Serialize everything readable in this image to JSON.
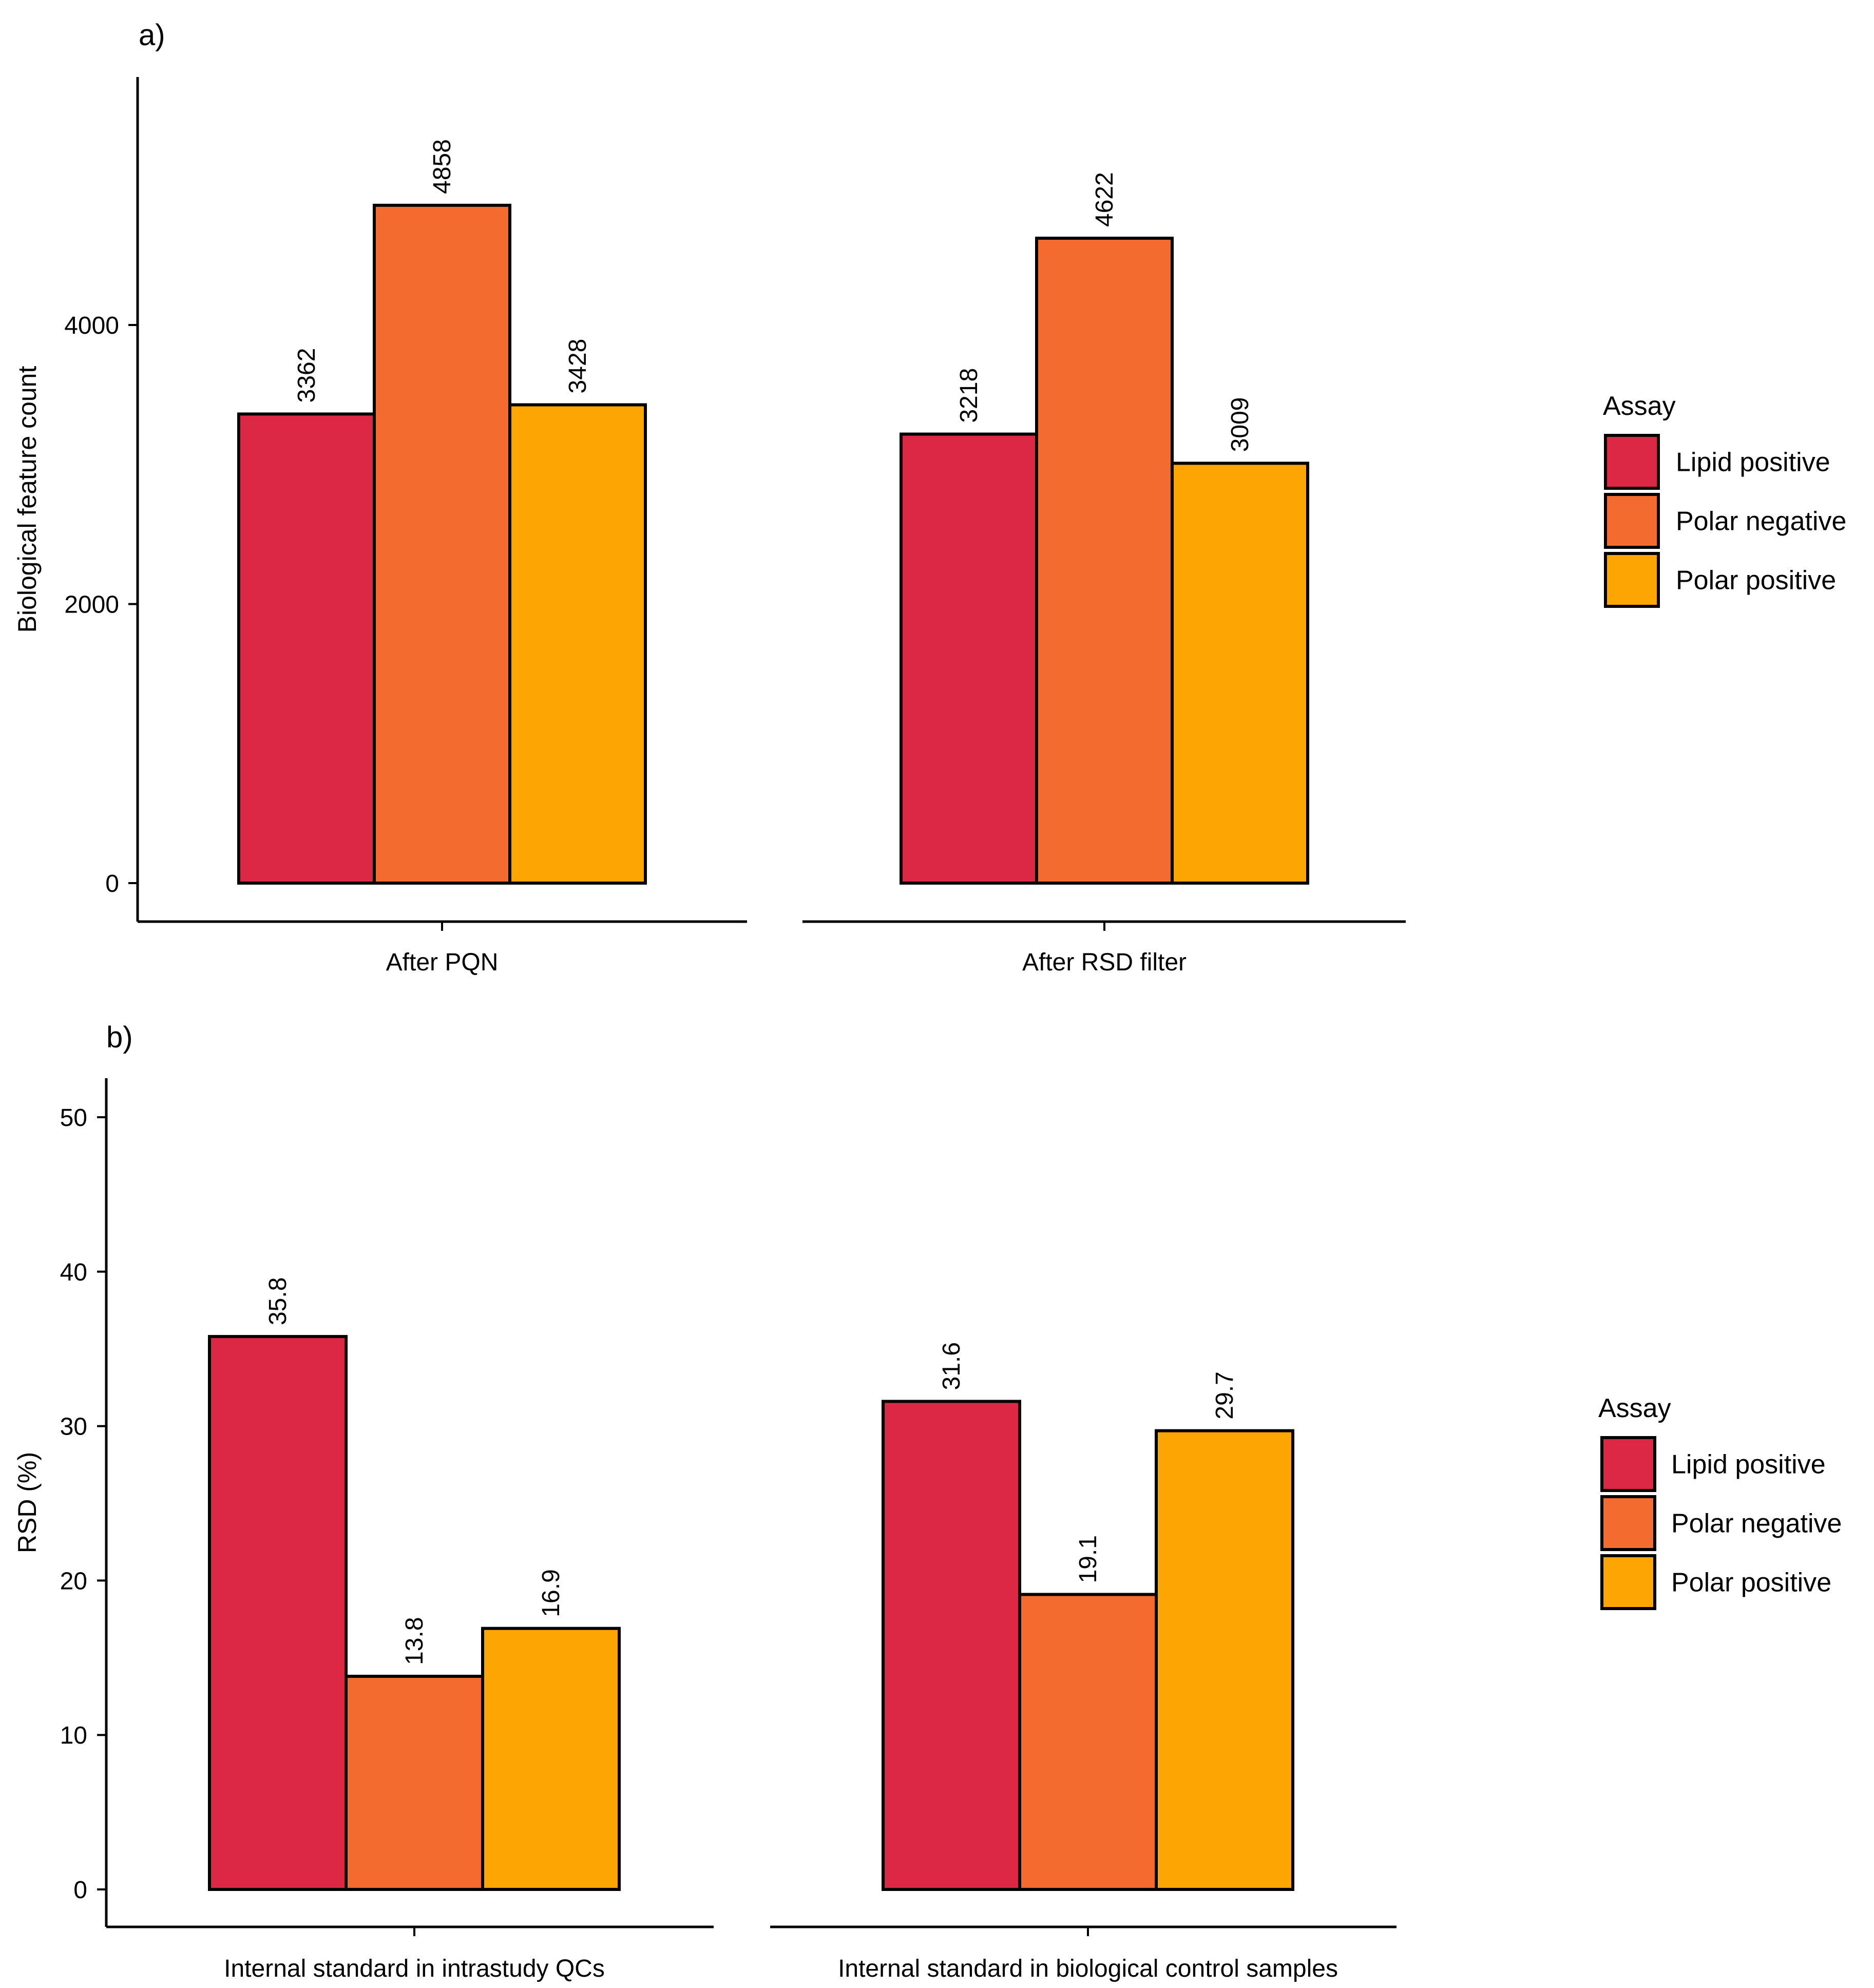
{
  "chart_data": [
    {
      "panel_tag": "a)",
      "type": "bar",
      "xlabel": "",
      "ylabel": "Biological feature count",
      "ylim": [
        0,
        5800
      ],
      "yticks": [
        0,
        2000,
        4000
      ],
      "grid": false,
      "legend_placement": "right",
      "legend_title": "Assay",
      "series": [
        {
          "name": "Lipid positive",
          "color": "#DC2845"
        },
        {
          "name": "Polar negative",
          "color": "#F36B2F"
        },
        {
          "name": "Polar positive",
          "color": "#FCA503"
        }
      ],
      "categories": [
        {
          "label": "After PQN",
          "values": [
            3362,
            4858,
            3428
          ],
          "labels": [
            "3362",
            "4858",
            "3428"
          ]
        },
        {
          "label": "After RSD filter",
          "values": [
            3218,
            4622,
            3009
          ],
          "labels": [
            "3218",
            "4622",
            "3009"
          ]
        }
      ]
    },
    {
      "panel_tag": "b)",
      "type": "bar",
      "xlabel": "",
      "ylabel": "RSD (%)",
      "ylim": [
        0,
        52.5
      ],
      "yticks": [
        0,
        10,
        20,
        30,
        40,
        50
      ],
      "grid": false,
      "legend_placement": "right",
      "legend_title": "Assay",
      "series": [
        {
          "name": "Lipid positive",
          "color": "#DC2845"
        },
        {
          "name": "Polar negative",
          "color": "#F36B2F"
        },
        {
          "name": "Polar positive",
          "color": "#FCA503"
        }
      ],
      "categories": [
        {
          "label": "Internal standard in intrastudy QCs",
          "values": [
            35.8,
            13.8,
            16.9
          ],
          "labels": [
            "35.8",
            "13.8",
            "16.9"
          ]
        },
        {
          "label": "Internal standard in biological control samples",
          "values": [
            31.6,
            19.1,
            29.7
          ],
          "labels": [
            "31.6",
            "19.1",
            "29.7"
          ]
        }
      ]
    }
  ]
}
